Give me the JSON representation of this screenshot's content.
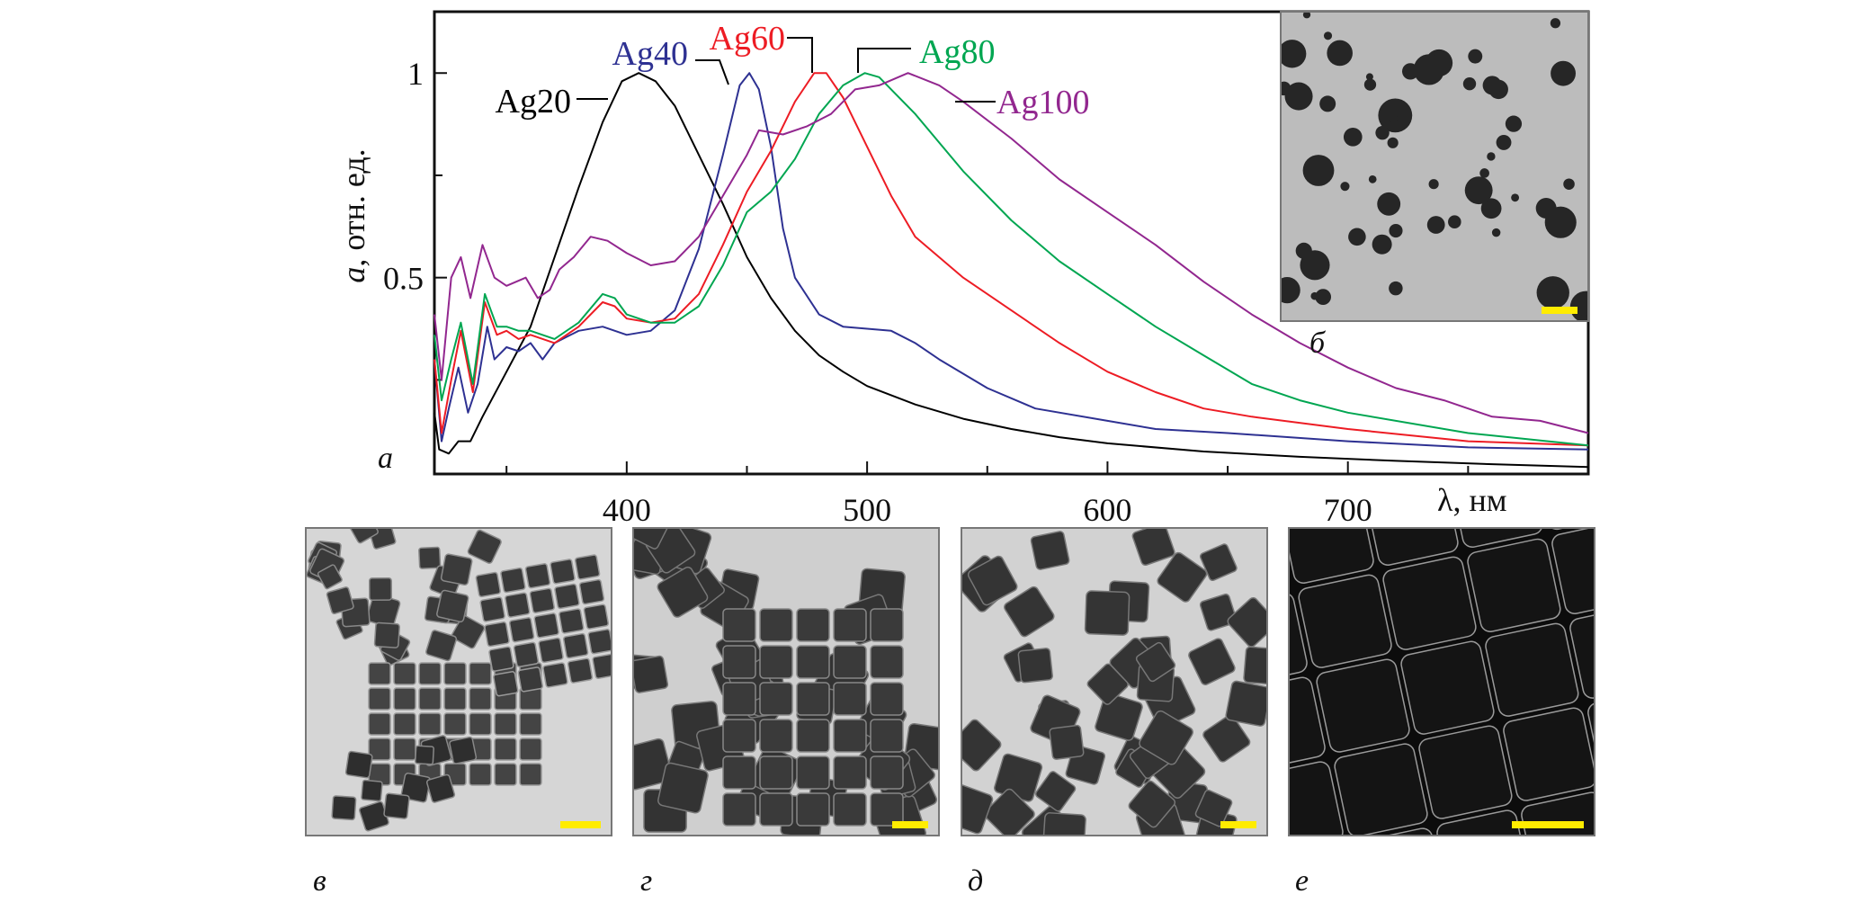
{
  "chart_data": {
    "type": "line",
    "title": "",
    "xlabel": "λ, нм",
    "ylabel_italic": "a",
    "ylabel_rest": ", отн. ед.",
    "xlim": [
      320,
      800
    ],
    "ylim": [
      0.02,
      1.15
    ],
    "x_ticks": [
      400,
      500,
      600,
      700
    ],
    "x_tick_labels": [
      "400",
      "500",
      "600",
      "700"
    ],
    "x_minor_ticks": [
      350,
      450,
      550,
      650,
      750
    ],
    "y_ticks": [
      0.5,
      1
    ],
    "y_tick_labels": [
      "0.5",
      "1"
    ],
    "y_minor_ticks": [
      0.25,
      0.75
    ],
    "grid": false,
    "series": [
      {
        "name": "Ag20",
        "color": "#000000",
        "points": [
          [
            320,
            0.17
          ],
          [
            322,
            0.08
          ],
          [
            326,
            0.07
          ],
          [
            330,
            0.1
          ],
          [
            335,
            0.1
          ],
          [
            340,
            0.16
          ],
          [
            350,
            0.27
          ],
          [
            360,
            0.38
          ],
          [
            370,
            0.55
          ],
          [
            380,
            0.72
          ],
          [
            390,
            0.88
          ],
          [
            398,
            0.98
          ],
          [
            405,
            1.0
          ],
          [
            412,
            0.98
          ],
          [
            420,
            0.92
          ],
          [
            430,
            0.8
          ],
          [
            440,
            0.68
          ],
          [
            450,
            0.55
          ],
          [
            460,
            0.45
          ],
          [
            470,
            0.37
          ],
          [
            480,
            0.31
          ],
          [
            490,
            0.27
          ],
          [
            500,
            0.235
          ],
          [
            520,
            0.19
          ],
          [
            540,
            0.155
          ],
          [
            560,
            0.13
          ],
          [
            580,
            0.11
          ],
          [
            600,
            0.095
          ],
          [
            640,
            0.075
          ],
          [
            680,
            0.062
          ],
          [
            720,
            0.052
          ],
          [
            760,
            0.044
          ],
          [
            800,
            0.037
          ]
        ]
      },
      {
        "name": "Ag40",
        "color": "#2e3192",
        "points": [
          [
            320,
            0.3
          ],
          [
            323,
            0.1
          ],
          [
            326,
            0.18
          ],
          [
            330,
            0.28
          ],
          [
            334,
            0.17
          ],
          [
            338,
            0.24
          ],
          [
            342,
            0.38
          ],
          [
            345,
            0.3
          ],
          [
            350,
            0.33
          ],
          [
            355,
            0.32
          ],
          [
            360,
            0.34
          ],
          [
            365,
            0.3
          ],
          [
            370,
            0.34
          ],
          [
            380,
            0.37
          ],
          [
            390,
            0.38
          ],
          [
            400,
            0.36
          ],
          [
            410,
            0.37
          ],
          [
            420,
            0.42
          ],
          [
            430,
            0.57
          ],
          [
            440,
            0.8
          ],
          [
            447,
            0.97
          ],
          [
            451,
            1.0
          ],
          [
            455,
            0.96
          ],
          [
            460,
            0.82
          ],
          [
            465,
            0.62
          ],
          [
            470,
            0.5
          ],
          [
            480,
            0.41
          ],
          [
            490,
            0.38
          ],
          [
            500,
            0.375
          ],
          [
            510,
            0.37
          ],
          [
            520,
            0.34
          ],
          [
            530,
            0.3
          ],
          [
            550,
            0.23
          ],
          [
            570,
            0.18
          ],
          [
            600,
            0.15
          ],
          [
            620,
            0.13
          ],
          [
            650,
            0.12
          ],
          [
            700,
            0.1
          ],
          [
            750,
            0.085
          ],
          [
            800,
            0.08
          ]
        ]
      },
      {
        "name": "Ag60",
        "color": "#ed1c24",
        "points": [
          [
            320,
            0.3
          ],
          [
            323,
            0.12
          ],
          [
            327,
            0.25
          ],
          [
            331,
            0.37
          ],
          [
            336,
            0.22
          ],
          [
            341,
            0.44
          ],
          [
            346,
            0.36
          ],
          [
            350,
            0.37
          ],
          [
            355,
            0.35
          ],
          [
            360,
            0.36
          ],
          [
            370,
            0.34
          ],
          [
            380,
            0.38
          ],
          [
            390,
            0.44
          ],
          [
            395,
            0.43
          ],
          [
            400,
            0.4
          ],
          [
            410,
            0.39
          ],
          [
            420,
            0.4
          ],
          [
            430,
            0.46
          ],
          [
            440,
            0.58
          ],
          [
            450,
            0.71
          ],
          [
            460,
            0.81
          ],
          [
            470,
            0.93
          ],
          [
            478,
            1.0
          ],
          [
            483,
            1.0
          ],
          [
            490,
            0.94
          ],
          [
            500,
            0.82
          ],
          [
            510,
            0.7
          ],
          [
            520,
            0.6
          ],
          [
            540,
            0.5
          ],
          [
            560,
            0.42
          ],
          [
            580,
            0.34
          ],
          [
            600,
            0.27
          ],
          [
            620,
            0.22
          ],
          [
            640,
            0.18
          ],
          [
            660,
            0.16
          ],
          [
            700,
            0.13
          ],
          [
            750,
            0.1
          ],
          [
            800,
            0.09
          ]
        ]
      },
      {
        "name": "Ag80",
        "color": "#00a651",
        "points": [
          [
            320,
            0.36
          ],
          [
            323,
            0.2
          ],
          [
            327,
            0.3
          ],
          [
            331,
            0.39
          ],
          [
            336,
            0.24
          ],
          [
            341,
            0.46
          ],
          [
            346,
            0.38
          ],
          [
            350,
            0.38
          ],
          [
            355,
            0.37
          ],
          [
            360,
            0.37
          ],
          [
            370,
            0.35
          ],
          [
            380,
            0.39
          ],
          [
            390,
            0.46
          ],
          [
            395,
            0.45
          ],
          [
            400,
            0.41
          ],
          [
            410,
            0.39
          ],
          [
            420,
            0.39
          ],
          [
            430,
            0.43
          ],
          [
            440,
            0.53
          ],
          [
            450,
            0.66
          ],
          [
            460,
            0.71
          ],
          [
            470,
            0.79
          ],
          [
            480,
            0.9
          ],
          [
            490,
            0.97
          ],
          [
            499,
            1.0
          ],
          [
            505,
            0.99
          ],
          [
            520,
            0.9
          ],
          [
            540,
            0.76
          ],
          [
            560,
            0.64
          ],
          [
            580,
            0.54
          ],
          [
            600,
            0.46
          ],
          [
            620,
            0.38
          ],
          [
            640,
            0.31
          ],
          [
            660,
            0.24
          ],
          [
            680,
            0.2
          ],
          [
            700,
            0.17
          ],
          [
            750,
            0.12
          ],
          [
            800,
            0.09
          ]
        ]
      },
      {
        "name": "Ag100",
        "color": "#92278f",
        "points": [
          [
            320,
            0.41
          ],
          [
            323,
            0.25
          ],
          [
            327,
            0.5
          ],
          [
            331,
            0.55
          ],
          [
            335,
            0.45
          ],
          [
            340,
            0.58
          ],
          [
            345,
            0.5
          ],
          [
            350,
            0.48
          ],
          [
            358,
            0.5
          ],
          [
            363,
            0.45
          ],
          [
            368,
            0.47
          ],
          [
            372,
            0.52
          ],
          [
            378,
            0.55
          ],
          [
            385,
            0.6
          ],
          [
            392,
            0.59
          ],
          [
            400,
            0.56
          ],
          [
            410,
            0.53
          ],
          [
            420,
            0.54
          ],
          [
            430,
            0.6
          ],
          [
            440,
            0.7
          ],
          [
            450,
            0.8
          ],
          [
            455,
            0.86
          ],
          [
            465,
            0.85
          ],
          [
            475,
            0.87
          ],
          [
            485,
            0.9
          ],
          [
            495,
            0.96
          ],
          [
            505,
            0.97
          ],
          [
            517,
            1.0
          ],
          [
            530,
            0.97
          ],
          [
            540,
            0.93
          ],
          [
            560,
            0.84
          ],
          [
            580,
            0.74
          ],
          [
            600,
            0.66
          ],
          [
            620,
            0.58
          ],
          [
            640,
            0.49
          ],
          [
            660,
            0.41
          ],
          [
            680,
            0.34
          ],
          [
            700,
            0.28
          ],
          [
            720,
            0.23
          ],
          [
            740,
            0.2
          ],
          [
            760,
            0.16
          ],
          [
            780,
            0.15
          ],
          [
            800,
            0.12
          ]
        ]
      }
    ]
  },
  "panel_labels": {
    "a": "а",
    "b": "б",
    "v": "в",
    "g": "г",
    "d": "д",
    "e": "е"
  },
  "colors": {
    "scale_bar": "#ffec00"
  }
}
